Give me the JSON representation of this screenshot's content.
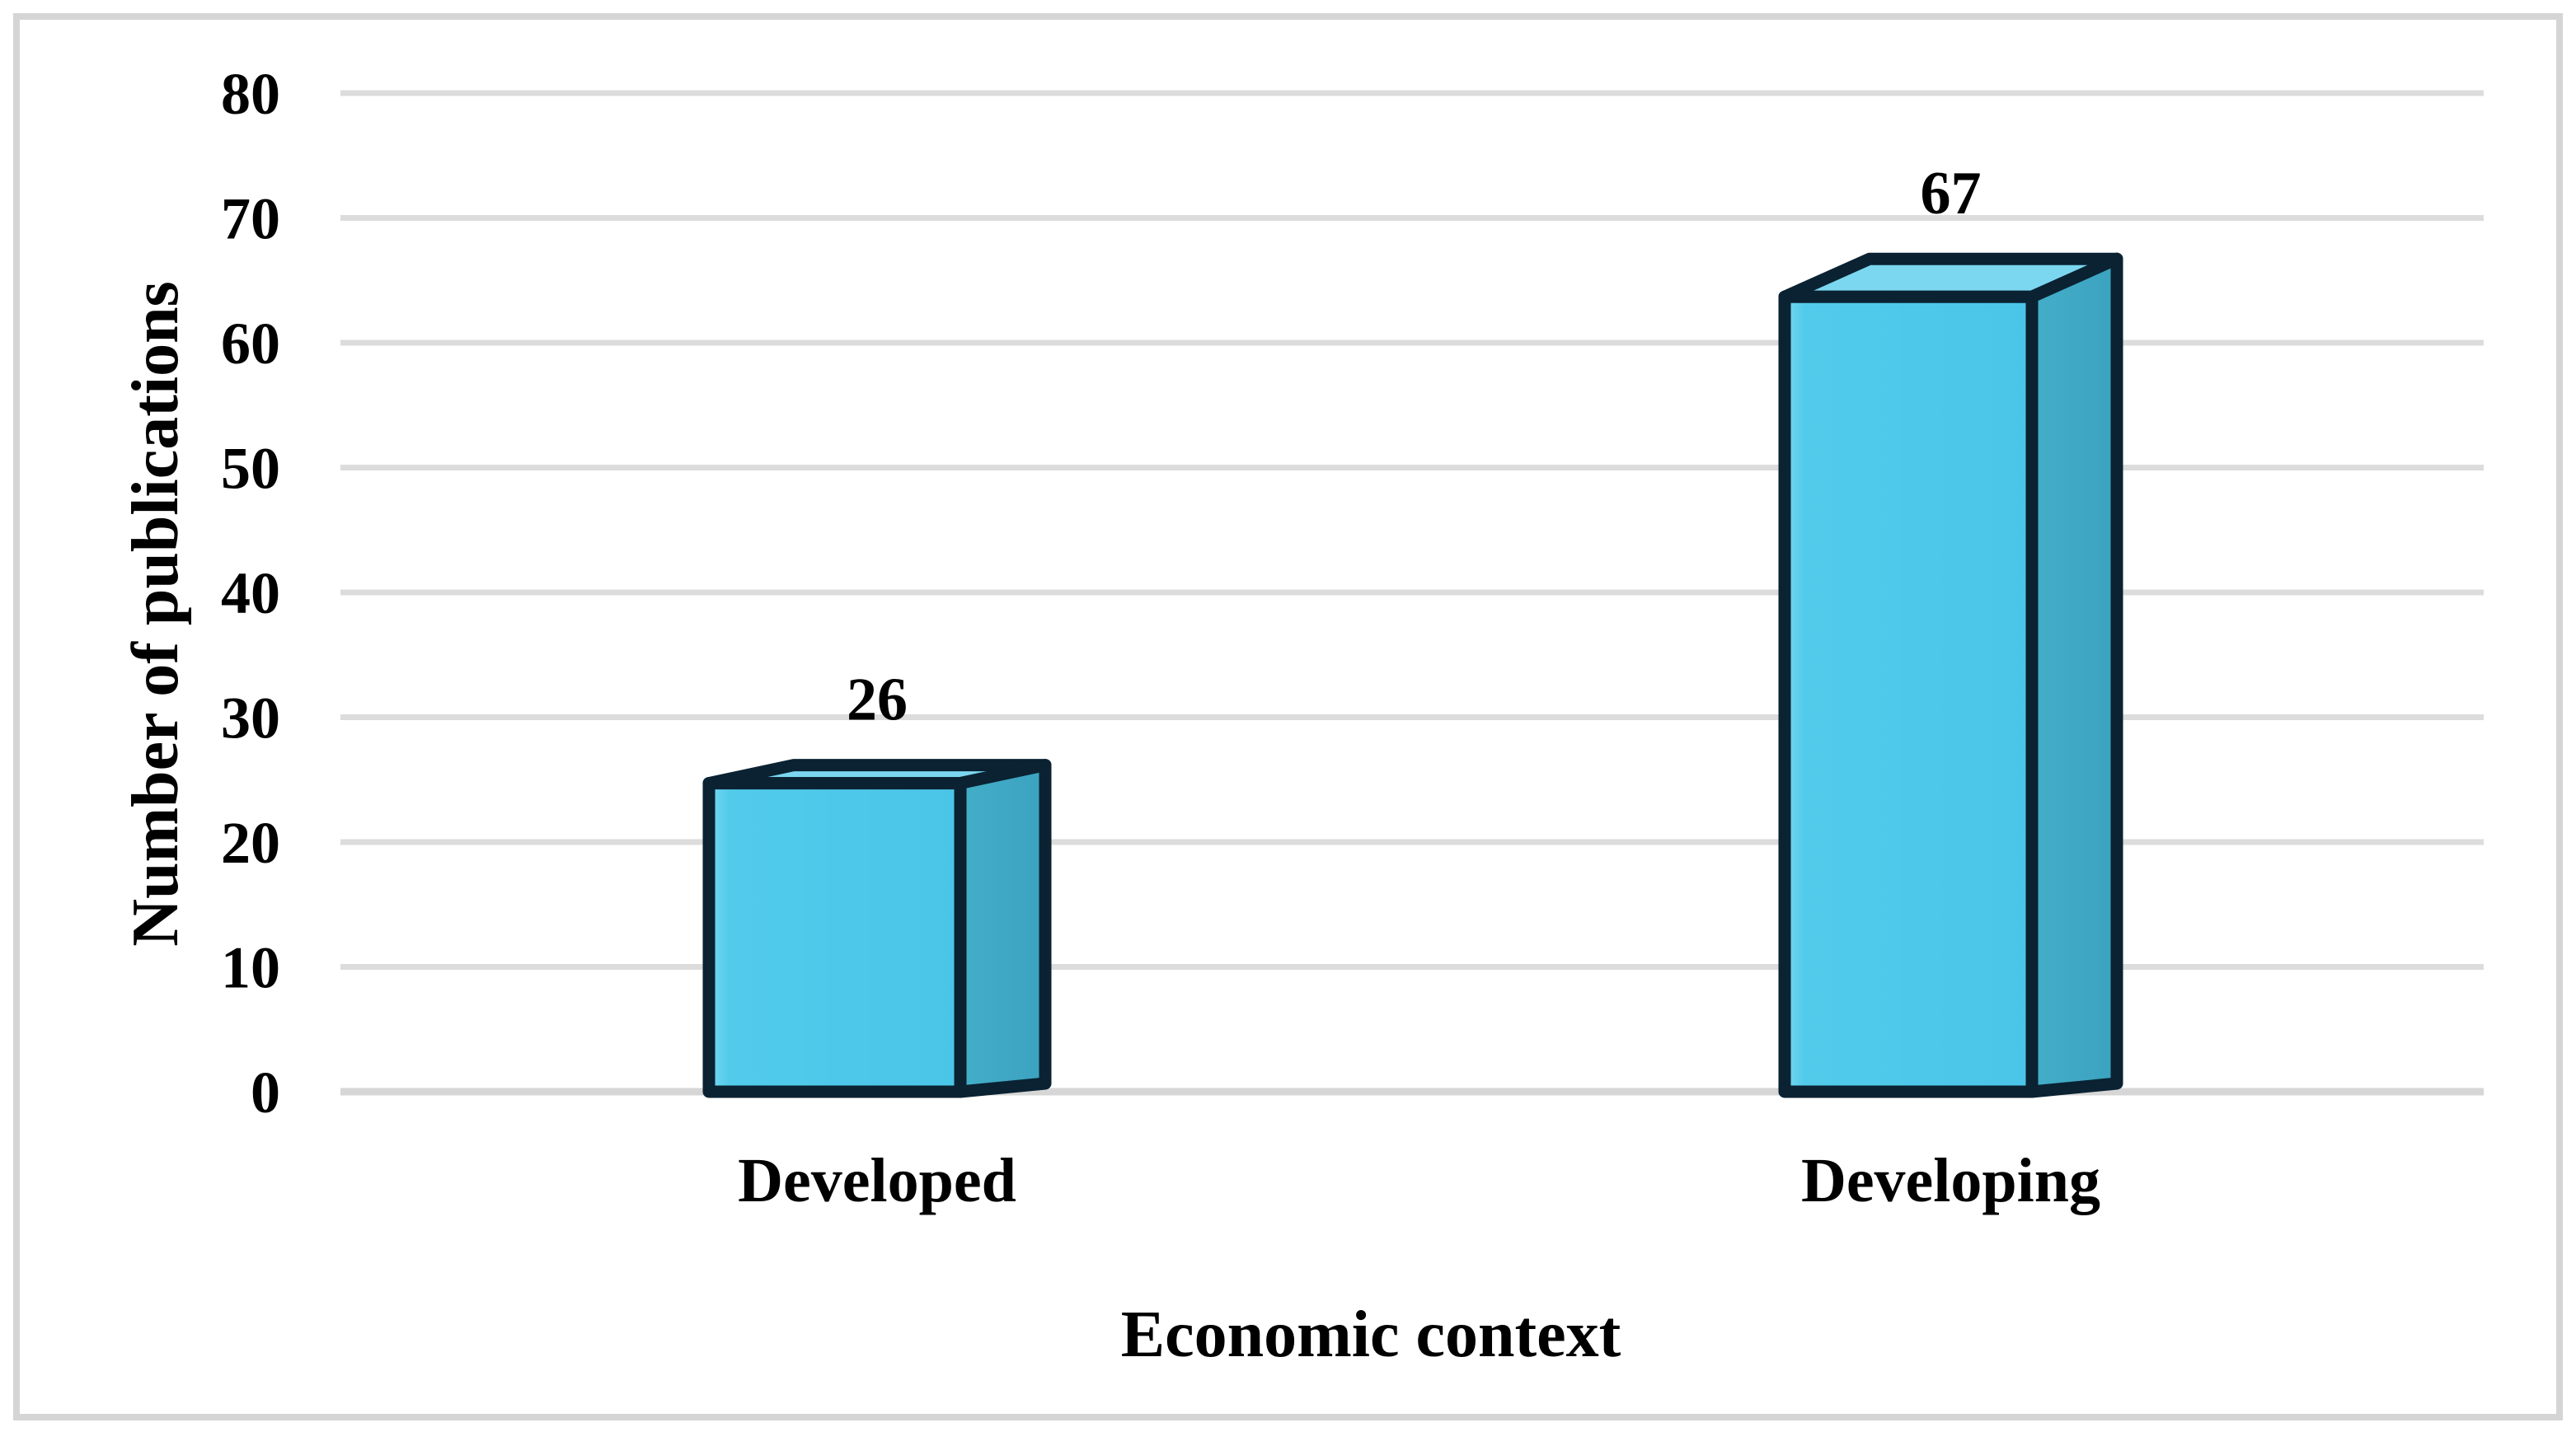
{
  "figure": {
    "background_color": "#ffffff",
    "border_color": "#d5d5d5"
  },
  "chart_data": {
    "type": "bar",
    "subtype": "3d-box-column",
    "title": "",
    "categories": [
      "Developed",
      "Developing"
    ],
    "values": [
      26,
      67
    ],
    "data_labels": [
      "26",
      "67"
    ],
    "xlabel": "Economic context",
    "ylabel": "Number of publications",
    "yticks": [
      0,
      10,
      20,
      30,
      40,
      50,
      60,
      70,
      80
    ],
    "ylim": [
      0,
      80
    ],
    "grid": "horizontal",
    "legend_position": "none",
    "colors": {
      "bar_front": "#4fc9ea",
      "bar_top": "#7bd7ef",
      "bar_side": "#3ea7c3",
      "bar_outline": "#0a2232",
      "gridline": "#dcdcdc",
      "baseline": "#d6d6d6",
      "text": "#000000"
    }
  }
}
